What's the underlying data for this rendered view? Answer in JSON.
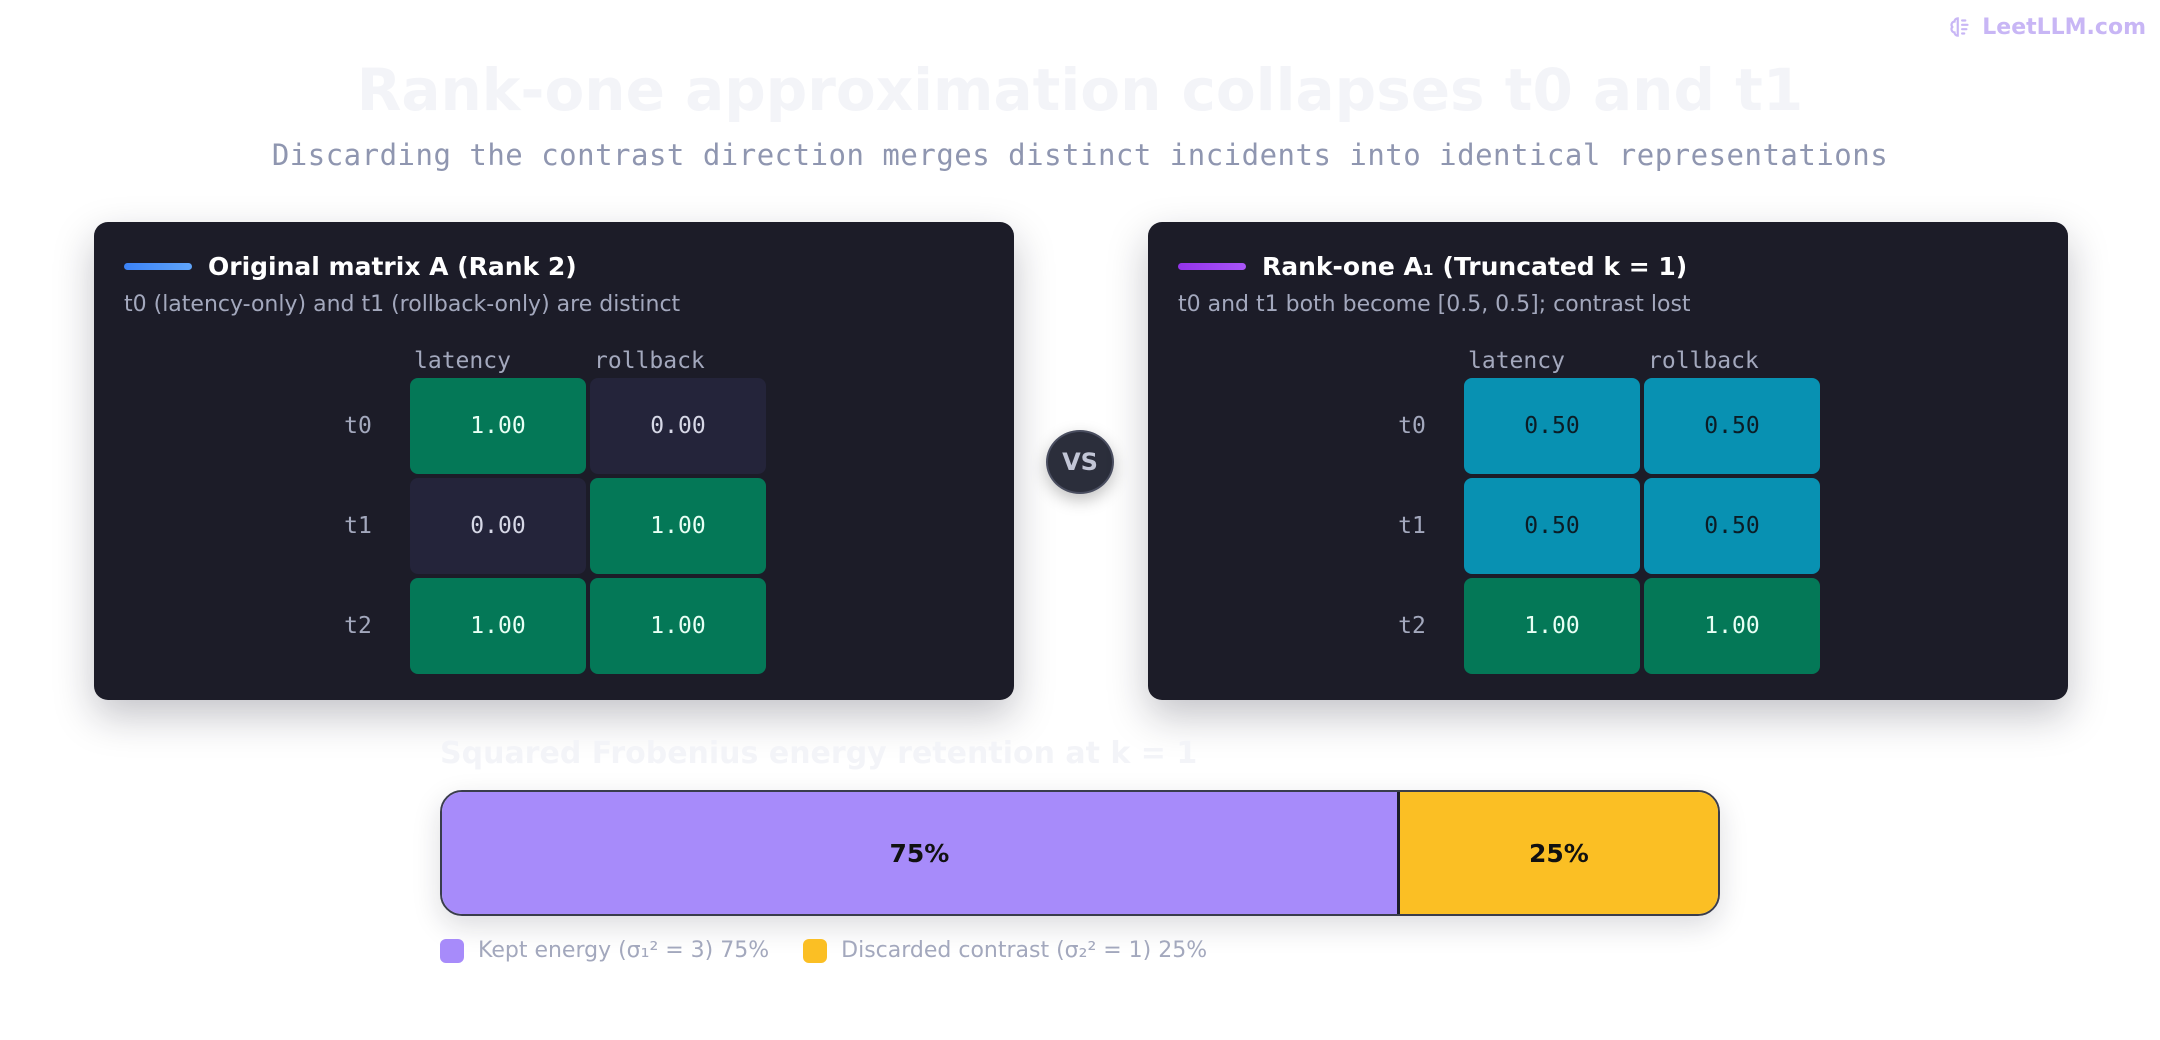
{
  "brand": {
    "name": "LeetLLM.com",
    "icon": "brain-icon"
  },
  "title": "Rank-one approximation collapses t0 and t1",
  "subtitle": "Discarding the contrast direction merges distinct incidents into identical representations",
  "vs_label": "VS",
  "left": {
    "title": "Original matrix A (Rank 2)",
    "subtitle": "t0 (latency-only) and t1 (rollback-only) are distinct",
    "accent_color": "#3b82f6",
    "columns": [
      "latency",
      "rollback"
    ],
    "rows": [
      {
        "label": "t0",
        "cells": [
          {
            "value": "1.00",
            "tone": "green"
          },
          {
            "value": "0.00",
            "tone": "dark"
          }
        ]
      },
      {
        "label": "t1",
        "cells": [
          {
            "value": "0.00",
            "tone": "dark"
          },
          {
            "value": "1.00",
            "tone": "green"
          }
        ]
      },
      {
        "label": "t2",
        "cells": [
          {
            "value": "1.00",
            "tone": "green"
          },
          {
            "value": "1.00",
            "tone": "green"
          }
        ]
      }
    ]
  },
  "right": {
    "title": "Rank-one A₁ (Truncated k = 1)",
    "subtitle": "t0 and t1 both become [0.5, 0.5]; contrast lost",
    "accent_color": "#9333ea",
    "columns": [
      "latency",
      "rollback"
    ],
    "rows": [
      {
        "label": "t0",
        "cells": [
          {
            "value": "0.50",
            "tone": "cyan"
          },
          {
            "value": "0.50",
            "tone": "cyan"
          }
        ]
      },
      {
        "label": "t1",
        "cells": [
          {
            "value": "0.50",
            "tone": "cyan"
          },
          {
            "value": "0.50",
            "tone": "cyan"
          }
        ]
      },
      {
        "label": "t2",
        "cells": [
          {
            "value": "1.00",
            "tone": "green"
          },
          {
            "value": "1.00",
            "tone": "green"
          }
        ]
      }
    ]
  },
  "tones": {
    "green": {
      "bg": "#047857",
      "fg": "#e8fff4"
    },
    "dark": {
      "bg": "#24243a",
      "fg": "#d6d8e6"
    },
    "cyan": {
      "bg": "#0891b2",
      "fg": "#0b1d26"
    }
  },
  "energy": {
    "title": "Squared Frobenius energy retention at k = 1",
    "segments": [
      {
        "label": "75%",
        "fraction": 0.75,
        "color": "#a78bfa",
        "legend": "Kept energy (σ₁² = 3) 75%"
      },
      {
        "label": "25%",
        "fraction": 0.25,
        "color": "#fbbf24",
        "legend": "Discarded contrast (σ₂² = 1) 25%"
      }
    ]
  }
}
